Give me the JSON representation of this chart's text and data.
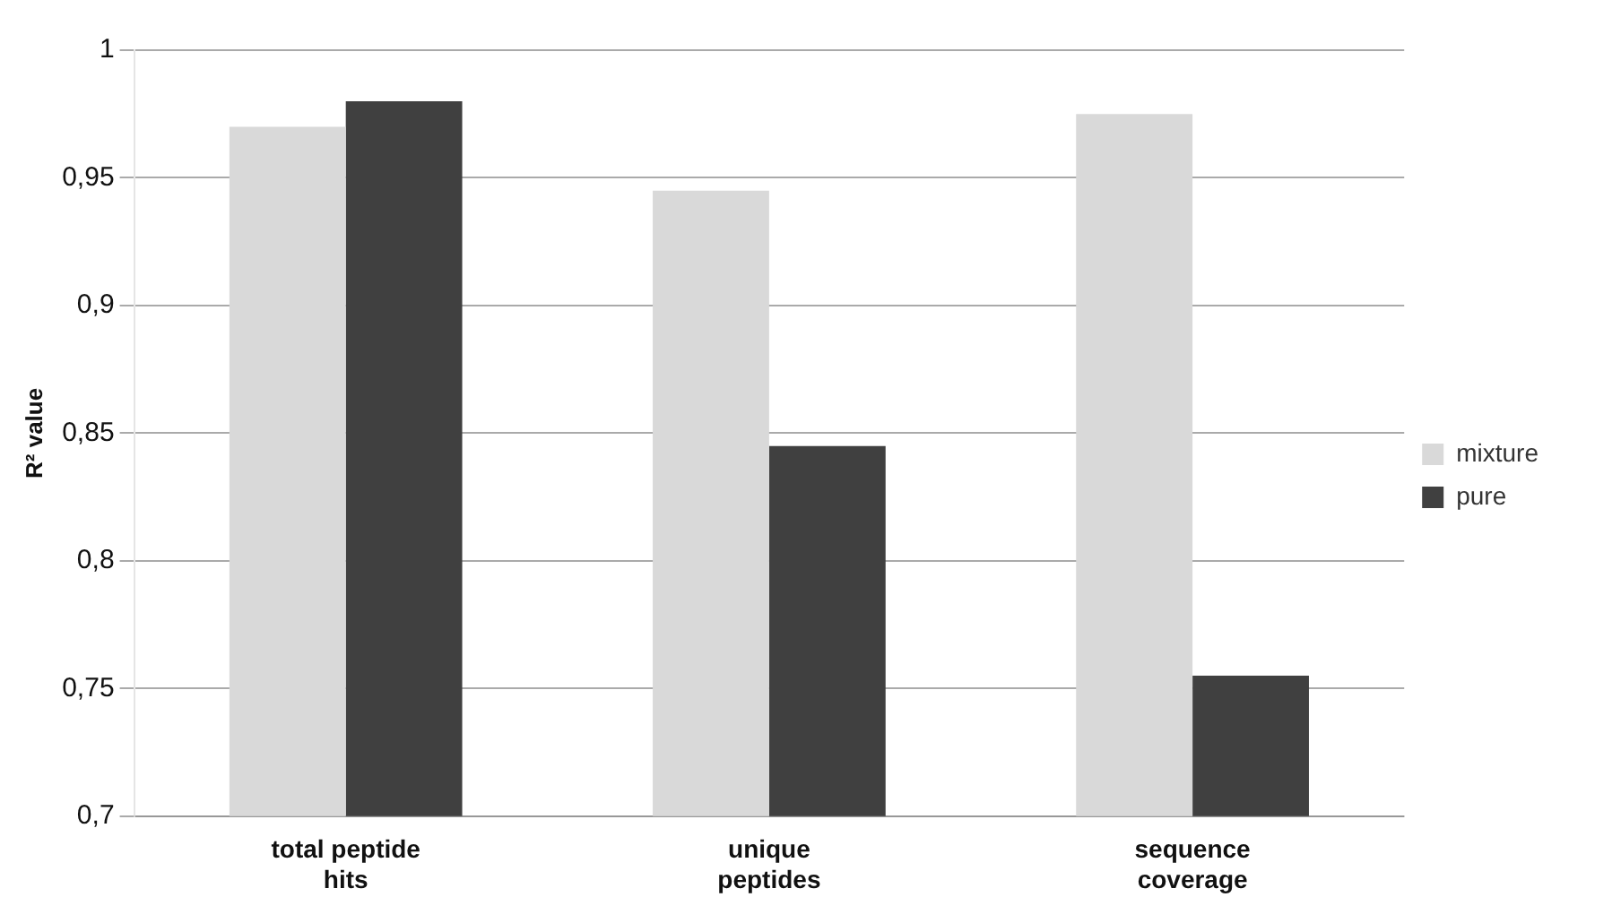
{
  "chart_data": {
    "type": "bar",
    "ylabel": "R² value",
    "categories": [
      "total peptide hits",
      "unique peptides",
      "sequence coverage"
    ],
    "series": [
      {
        "name": "mixture",
        "color": "#d9d9d9",
        "values": [
          0.97,
          0.945,
          0.975
        ]
      },
      {
        "name": "pure",
        "color": "#404040",
        "values": [
          0.98,
          0.845,
          0.755
        ]
      }
    ],
    "ylim": [
      0.7,
      1
    ],
    "yticks": [
      {
        "value": 0.7,
        "label": "0,7"
      },
      {
        "value": 0.75,
        "label": "0,75"
      },
      {
        "value": 0.8,
        "label": "0,8"
      },
      {
        "value": 0.85,
        "label": "0,85"
      },
      {
        "value": 0.9,
        "label": "0,9"
      },
      {
        "value": 0.95,
        "label": "0,95"
      },
      1
    ],
    "grid": "y",
    "legend": "right"
  }
}
